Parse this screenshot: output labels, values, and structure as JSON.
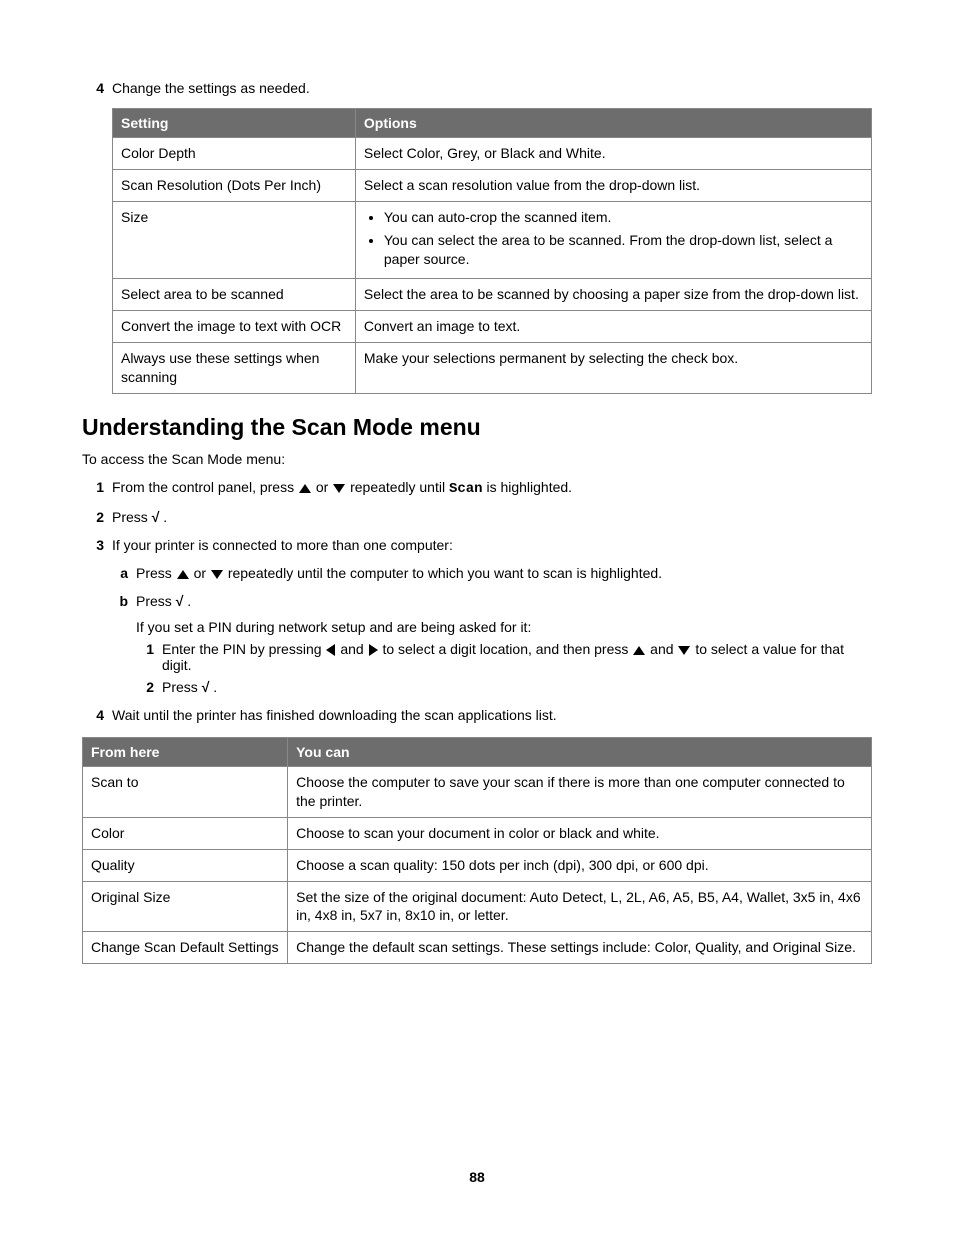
{
  "step4_top": {
    "num": "4",
    "text": "Change the settings as needed."
  },
  "table1": {
    "col1_width": "32%",
    "headers": [
      "Setting",
      "Options"
    ],
    "rows": [
      {
        "setting": "Color Depth",
        "options_type": "text",
        "options": "Select Color, Grey, or Black and White."
      },
      {
        "setting": "Scan Resolution (Dots Per Inch)",
        "options_type": "text",
        "options": "Select a scan resolution value from the drop-down list."
      },
      {
        "setting": "Size",
        "options_type": "bullets",
        "bullets": [
          "You can auto-crop the scanned item.",
          "You can select the area to be scanned. From the drop-down list, select a paper source."
        ]
      },
      {
        "setting": "Select area to be scanned",
        "options_type": "text",
        "options": "Select the area to be scanned by choosing a paper size from the drop-down list."
      },
      {
        "setting": "Convert the image to text with OCR",
        "options_type": "text",
        "options": "Convert an image to text."
      },
      {
        "setting": "Always use these settings when scanning",
        "options_type": "text",
        "options": "Make your selections permanent by selecting the check box."
      }
    ]
  },
  "heading": "Understanding the Scan Mode menu",
  "intro": "To access the Scan Mode menu:",
  "steps": {
    "s1": {
      "num": "1",
      "pre": "From the control panel, press ",
      "mid": " or ",
      "post1": " repeatedly until ",
      "scan": "Scan",
      "post2": " is highlighted."
    },
    "s2": {
      "num": "2",
      "pre": "Press ",
      "post": "."
    },
    "s3": {
      "num": "3",
      "text": "If your printer is connected to more than one computer:"
    },
    "s3a": {
      "letter": "a",
      "pre": "Press ",
      "mid": " or ",
      "post": " repeatedly until the computer to which you want to scan is highlighted."
    },
    "s3b": {
      "letter": "b",
      "pre": "Press ",
      "post": "."
    },
    "s3b_note": "If you set a PIN during network setup and are being asked for it:",
    "s3b1": {
      "num": "1",
      "pre": "Enter the PIN by pressing ",
      "mid1": " and ",
      "mid2": " to select a digit location, and then press ",
      "mid3": " and ",
      "post": " to select a value for that digit."
    },
    "s3b2": {
      "num": "2",
      "pre": "Press ",
      "post": "."
    },
    "s4": {
      "num": "4",
      "text": "Wait until the printer has finished downloading the scan applications list."
    }
  },
  "table2": {
    "col1_width": "26%",
    "headers": [
      "From here",
      "You can"
    ],
    "rows": [
      {
        "c1": "Scan to",
        "c2": "Choose the computer to save your scan if there is more than one computer connected to the printer."
      },
      {
        "c1": "Color",
        "c2": "Choose to scan your document in color or black and white."
      },
      {
        "c1": "Quality",
        "c2": "Choose a scan quality: 150 dots per inch (dpi), 300 dpi, or 600 dpi."
      },
      {
        "c1": "Original Size",
        "c2": "Set the size of the original document: Auto Detect, L, 2L, A6, A5, B5, A4, Wallet, 3x5 in, 4x6 in, 4x8 in, 5x7 in, 8x10 in, or letter."
      },
      {
        "c1": "Change Scan Default Settings",
        "c2": "Change the default scan settings. These settings include: Color, Quality, and Original Size."
      }
    ]
  },
  "page_number": "88",
  "check_glyph": "√"
}
